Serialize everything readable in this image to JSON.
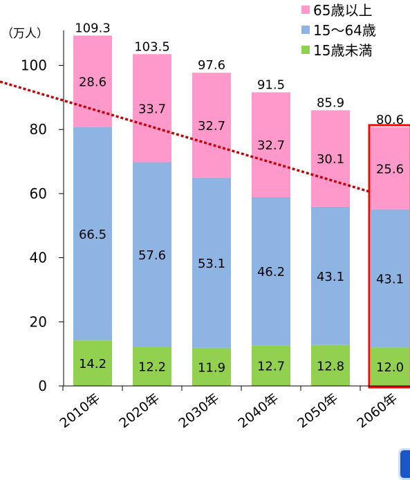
{
  "chart_data": {
    "type": "bar",
    "stacked": true,
    "unit_label": "（万人）",
    "categories": [
      "2010年",
      "2020年",
      "2030年",
      "2040年",
      "2050年",
      "2060年"
    ],
    "series": [
      {
        "name": "15歳未満",
        "color": "#92d050",
        "values": [
          14.2,
          12.2,
          11.9,
          12.7,
          12.8,
          12.0
        ]
      },
      {
        "name": "15～64歳",
        "color": "#8eb4e3",
        "values": [
          66.5,
          57.6,
          53.1,
          46.2,
          43.1,
          43.1
        ]
      },
      {
        "name": "65歳以上",
        "color": "#ff99cc",
        "values": [
          28.6,
          33.7,
          32.7,
          32.7,
          30.1,
          25.6
        ]
      }
    ],
    "totals": [
      "109.3",
      "103.5",
      "97.6",
      "91.5",
      "85.9",
      "80.6"
    ],
    "value_labels": [
      [
        "14.2",
        "12.2",
        "11.9",
        "12.7",
        "12.8",
        "12.0"
      ],
      [
        "66.5",
        "57.6",
        "53.1",
        "46.2",
        "43.1",
        "43.1"
      ],
      [
        "28.6",
        "33.7",
        "32.7",
        "32.7",
        "30.1",
        "25.6"
      ]
    ],
    "legend_order": [
      2,
      1,
      0
    ],
    "legend_position": "top-right",
    "highlight_category": "2060年",
    "highlight_color": "#ff0000",
    "trend_line_color": "#cc0000",
    "yticks": [
      0,
      20,
      40,
      60,
      80,
      100
    ],
    "ylim": [
      0,
      110
    ],
    "grid": false
  }
}
